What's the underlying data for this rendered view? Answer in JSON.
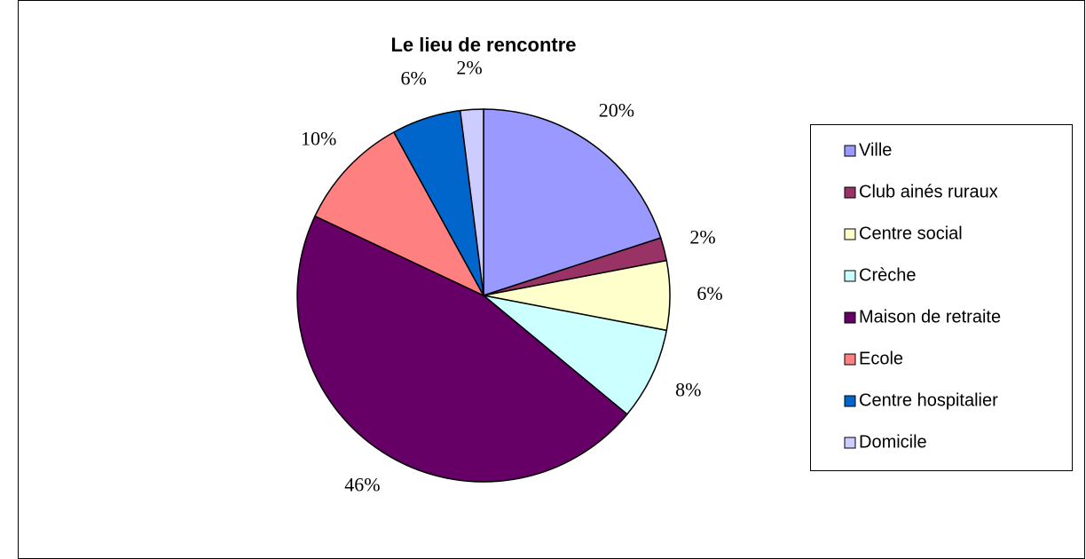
{
  "chart_data": {
    "type": "pie",
    "title": "Le lieu de rencontre",
    "categories": [
      "Ville",
      "Club ainés ruraux",
      "Centre social",
      "Crèche",
      "Maison de retraite",
      "Ecole",
      "Centre hospitalier",
      "Domicile"
    ],
    "values": [
      20,
      2,
      6,
      8,
      46,
      10,
      6,
      2
    ],
    "value_labels": [
      "20%",
      "2%",
      "6%",
      "8%",
      "46%",
      "10%",
      "6%",
      "2%"
    ],
    "colors": [
      "#9999ff",
      "#993366",
      "#ffffcc",
      "#ccffff",
      "#660066",
      "#ff8080",
      "#0066cc",
      "#ccccff"
    ],
    "legend": "right"
  }
}
